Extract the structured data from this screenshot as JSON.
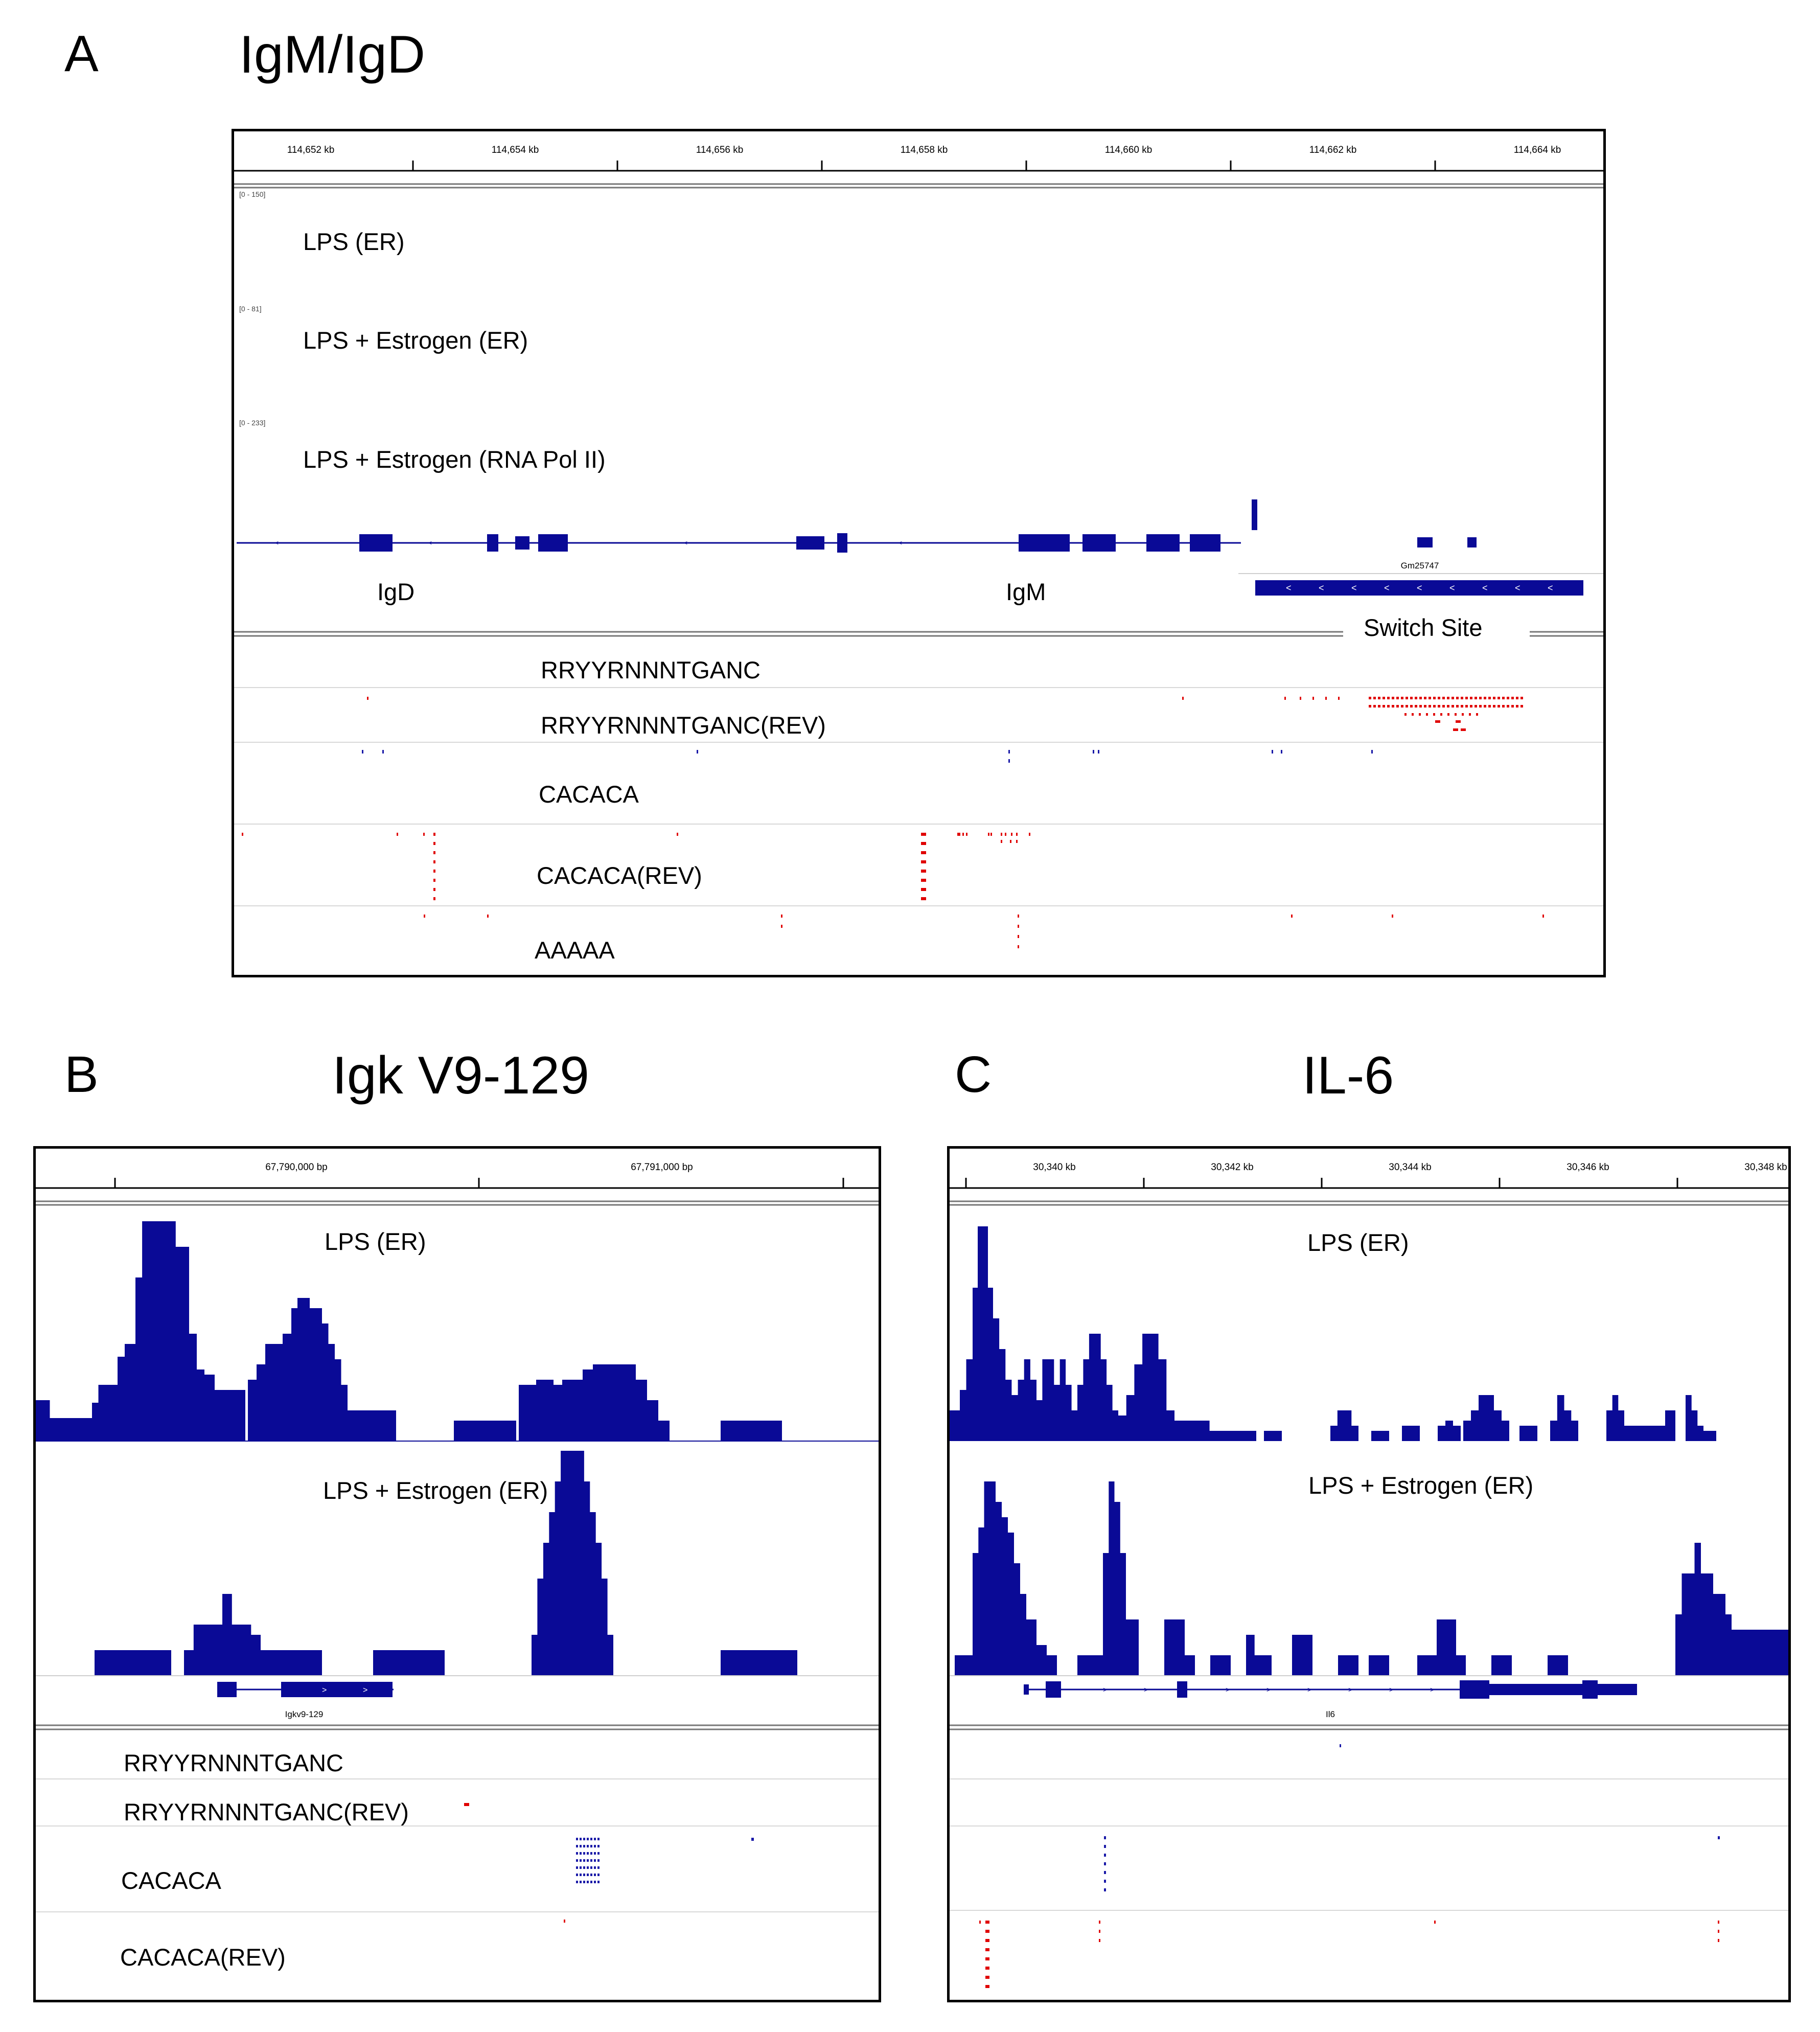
{
  "panels": {
    "A": {
      "letter": "A",
      "title": "IgM/IgD",
      "ruler_ticks": [
        "114,652 kb",
        "114,654 kb",
        "114,656 kb",
        "114,658 kb",
        "114,660 kb",
        "114,662 kb",
        "114,664 kb"
      ],
      "tracks": [
        {
          "label": "LPS (ER)",
          "range": "[0 - 150]"
        },
        {
          "label": "LPS + Estrogen (ER)",
          "range": "[0 - 81]"
        },
        {
          "label": "LPS + Estrogen (RNA Pol II)",
          "range": "[0 - 233]"
        }
      ],
      "genes": {
        "igd": "IgD",
        "igm": "IgM",
        "gm": "Gm25747",
        "switch": "Switch Site"
      },
      "motifs": [
        "RRYYRNNNTGANC",
        "RRYYRNNNTGANC(REV)",
        "CACACA",
        "CACACA(REV)",
        "AAAAA"
      ]
    },
    "B": {
      "letter": "B",
      "title": "Igk V9-129",
      "ruler_ticks": [
        "67,790,000 bp",
        "67,791,000 bp"
      ],
      "tracks": [
        {
          "label": "LPS (ER)"
        },
        {
          "label": "LPS + Estrogen (ER)"
        }
      ],
      "gene": "Igkv9-129",
      "motifs": [
        "RRYYRNNNTGANC",
        "RRYYRNNNTGANC(REV)",
        "CACACA",
        "CACACA(REV)"
      ]
    },
    "C": {
      "letter": "C",
      "title": "IL-6",
      "ruler_ticks": [
        "30,340 kb",
        "30,342 kb",
        "30,344 kb",
        "30,346 kb",
        "30,348 kb"
      ],
      "tracks": [
        {
          "label": "LPS (ER)"
        },
        {
          "label": "LPS + Estrogen (ER)"
        }
      ],
      "gene": "Il6"
    }
  },
  "colors": {
    "signal": "#0a0a96",
    "motif_forward": "#e00000",
    "motif_reverse": "#1a1aa8"
  }
}
